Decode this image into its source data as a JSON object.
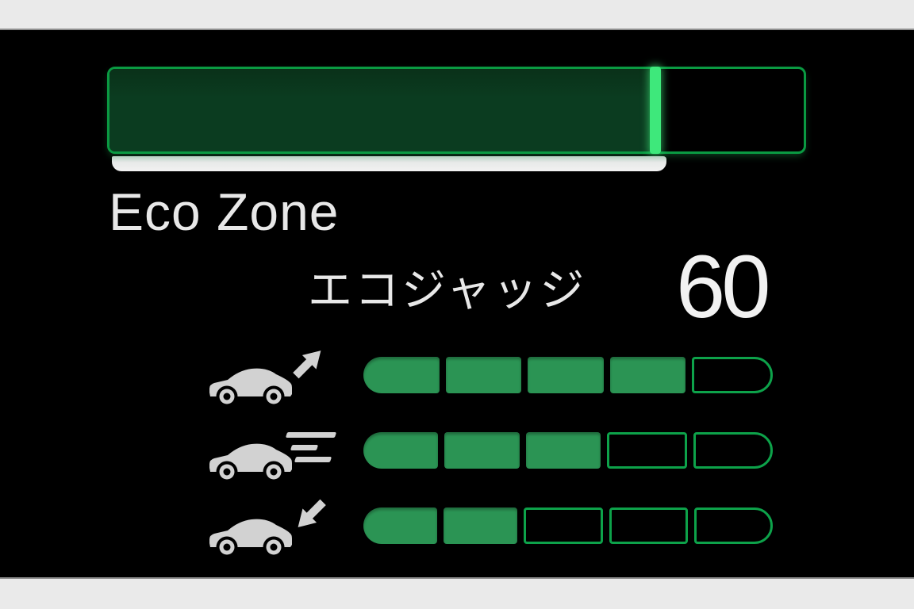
{
  "display": {
    "background_color": "#000000",
    "letterbox_color": "#eaeaea",
    "text_color": "#e8e8e8",
    "eco_zone": {
      "label": "Eco Zone",
      "fill_percent": 78,
      "bar_fill_color": "#0b3c20",
      "bar_border_color": "#0a9a42",
      "bar_edge_color": "#3ee87b"
    },
    "eco_judge": {
      "label": "エコジャッジ",
      "score": "60"
    },
    "meters": {
      "segment_fill_color": "#2b9454",
      "segment_border_color": "#0da24a",
      "icon_color": "#d2d2d2",
      "rows": [
        {
          "name": "acceleration",
          "icon": "car-accelerating-icon",
          "filled": 4,
          "total": 5
        },
        {
          "name": "cruising",
          "icon": "car-cruising-icon",
          "filled": 3,
          "total": 5
        },
        {
          "name": "deceleration",
          "icon": "car-decelerating-icon",
          "filled": 2,
          "total": 5
        }
      ]
    }
  }
}
